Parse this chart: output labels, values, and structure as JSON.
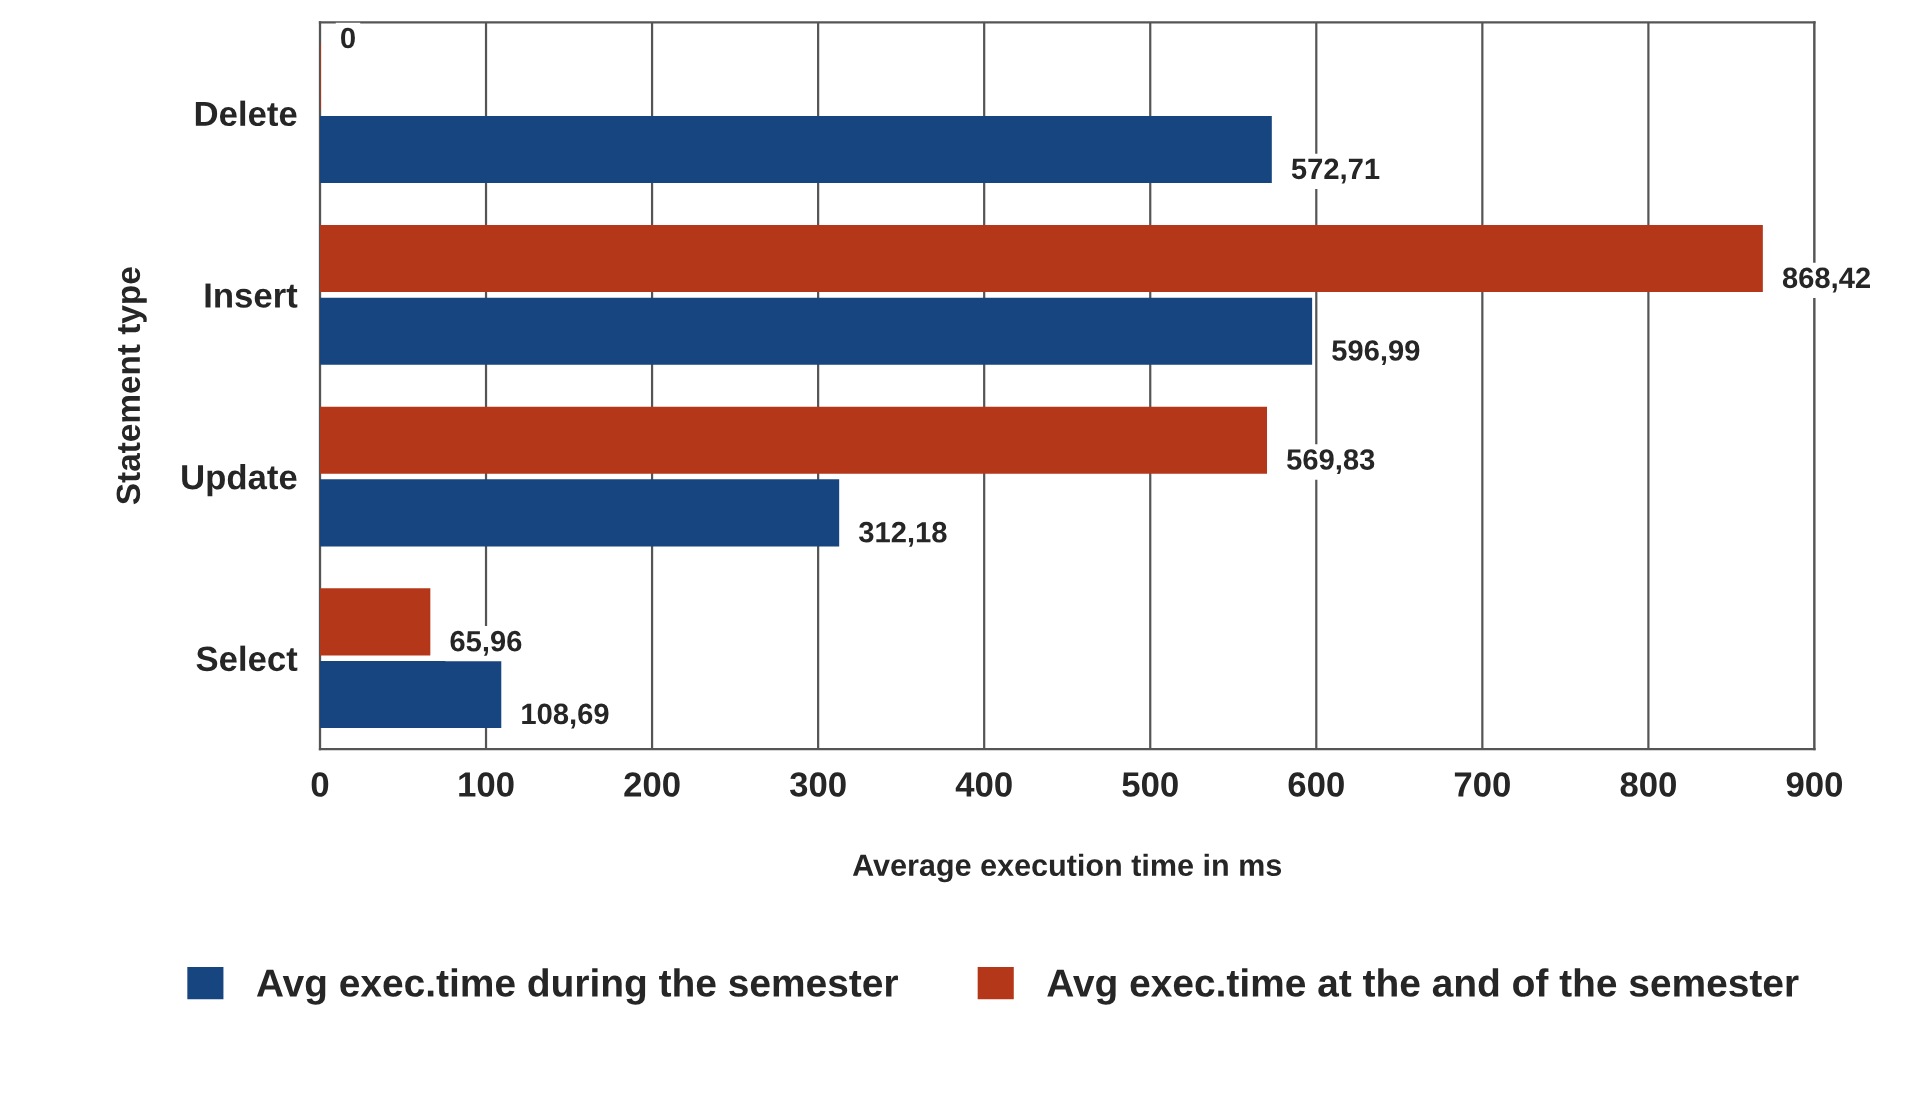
{
  "chart_data": {
    "type": "bar",
    "orientation": "horizontal",
    "xlabel": "Average execution time in ms",
    "ylabel": "Statement type",
    "categories": [
      "Delete",
      "Insert",
      "Update",
      "Select"
    ],
    "series": [
      {
        "name": "Avg exec.time during the semester",
        "color": "#17457f",
        "values": [
          572.71,
          596.99,
          312.18,
          108.69
        ],
        "value_labels": [
          "572,71",
          "596,99",
          "312,18",
          "108,69"
        ]
      },
      {
        "name": "Avg exec.time at the and of the semester",
        "color": "#b5371a",
        "values": [
          0,
          868.42,
          569.83,
          65.96
        ],
        "value_labels": [
          "0",
          "868,42",
          "569,83",
          "65,96"
        ]
      }
    ],
    "xlim": [
      0,
      900
    ],
    "xticks": [
      0,
      100,
      200,
      300,
      400,
      500,
      600,
      700,
      800,
      900
    ],
    "grid": "x",
    "legend": "bottom"
  }
}
